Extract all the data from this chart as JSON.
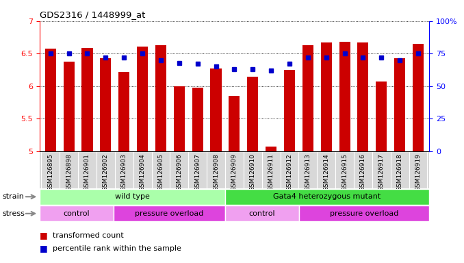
{
  "title": "GDS2316 / 1448999_at",
  "samples": [
    "GSM126895",
    "GSM126898",
    "GSM126901",
    "GSM126902",
    "GSM126903",
    "GSM126904",
    "GSM126905",
    "GSM126906",
    "GSM126907",
    "GSM126908",
    "GSM126909",
    "GSM126910",
    "GSM126911",
    "GSM126912",
    "GSM126913",
    "GSM126914",
    "GSM126915",
    "GSM126916",
    "GSM126917",
    "GSM126918",
    "GSM126919"
  ],
  "bar_values": [
    6.58,
    6.38,
    6.59,
    6.43,
    6.22,
    6.61,
    6.63,
    6.0,
    5.98,
    6.27,
    5.85,
    6.14,
    5.07,
    6.25,
    6.63,
    6.67,
    6.68,
    6.67,
    6.07,
    6.43,
    6.65
  ],
  "percentile_values": [
    75,
    75,
    75,
    72,
    72,
    75,
    70,
    68,
    67,
    65,
    63,
    63,
    62,
    67,
    72,
    72,
    75,
    72,
    72,
    70,
    75
  ],
  "bar_color": "#cc0000",
  "percentile_color": "#0000cc",
  "ylim_left": [
    5.0,
    7.0
  ],
  "ylim_right": [
    0,
    100
  ],
  "yticks_left": [
    5.0,
    5.5,
    6.0,
    6.5,
    7.0
  ],
  "yticks_right": [
    0,
    25,
    50,
    75,
    100
  ],
  "strain_groups": [
    {
      "label": "wild type",
      "start": 0,
      "end": 10,
      "color": "#aaffaa"
    },
    {
      "label": "Gata4 heterozygous mutant",
      "start": 10,
      "end": 21,
      "color": "#44dd44"
    }
  ],
  "stress_groups": [
    {
      "label": "control",
      "start": 0,
      "end": 4,
      "color": "#f0a0f0"
    },
    {
      "label": "pressure overload",
      "start": 4,
      "end": 10,
      "color": "#dd44dd"
    },
    {
      "label": "control",
      "start": 10,
      "end": 14,
      "color": "#f0a0f0"
    },
    {
      "label": "pressure overload",
      "start": 14,
      "end": 21,
      "color": "#dd44dd"
    }
  ],
  "strain_label": "strain",
  "stress_label": "stress",
  "legend_bar_label": "transformed count",
  "legend_pct_label": "percentile rank within the sample",
  "bg_color": "#ffffff",
  "sample_bg_color": "#d8d8d8"
}
